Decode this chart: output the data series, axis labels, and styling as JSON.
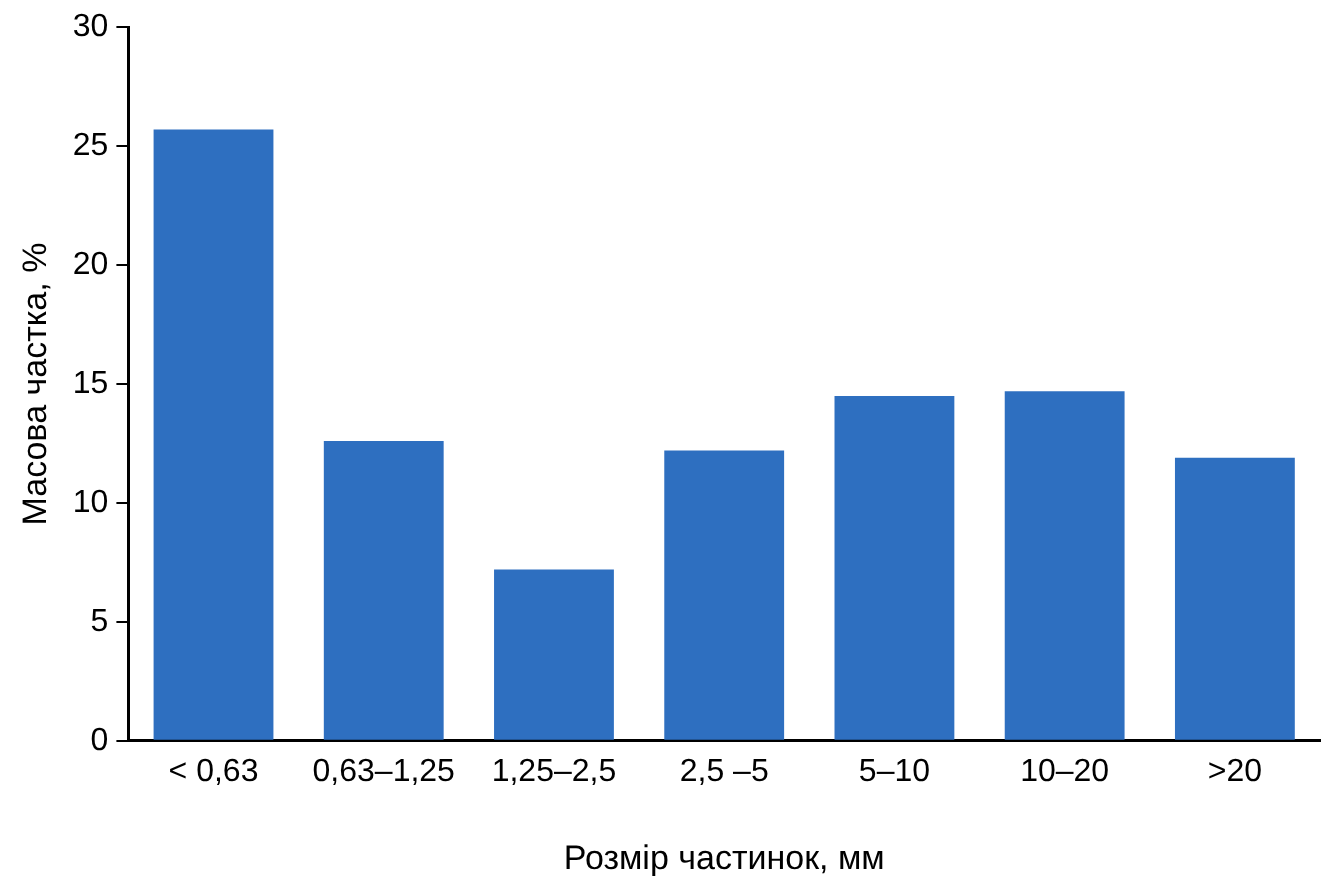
{
  "chart_data": {
    "type": "bar",
    "xlabel": "Розмір частинок, мм",
    "ylabel": "Масова частка, %",
    "categories": [
      "< 0,63",
      "0,63–1,25",
      "1,25–2,5",
      "2,5 –5",
      "5–10",
      "10–20",
      ">20"
    ],
    "values": [
      25.7,
      12.6,
      7.2,
      12.2,
      14.5,
      14.7,
      11.9
    ],
    "color": "#2e6fc0",
    "ylim": [
      0,
      30
    ],
    "yticks": [
      0,
      5,
      10,
      15,
      20,
      25,
      30
    ],
    "grid": false,
    "legend": false
  }
}
